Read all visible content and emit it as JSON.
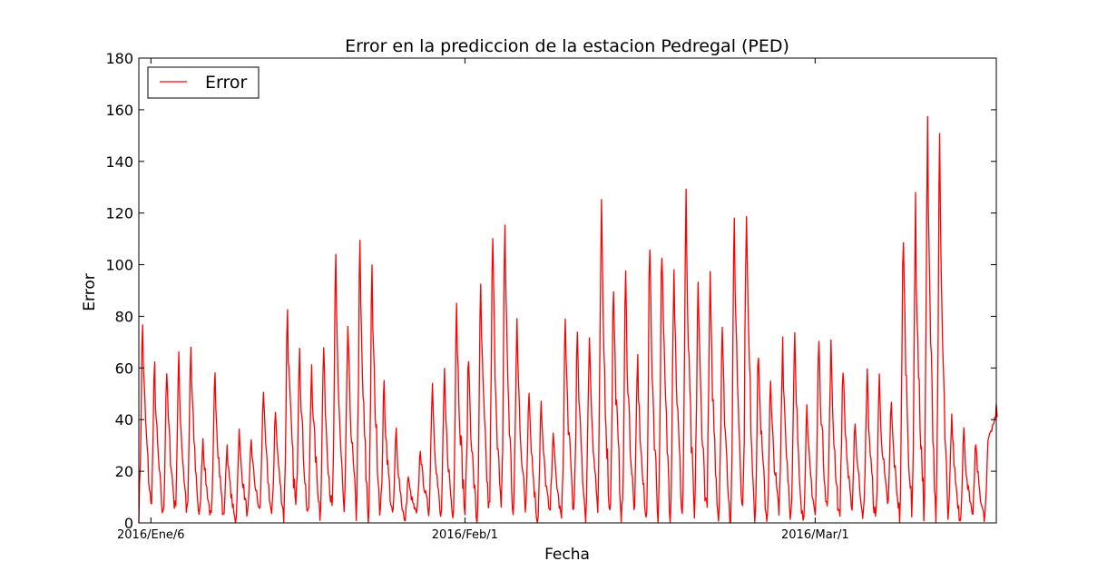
{
  "chart_data": {
    "type": "line",
    "title": "Error en la prediccion de la estacion Pedregal (PED)",
    "xlabel": "Fecha",
    "ylabel": "Error",
    "ylim": [
      0,
      180
    ],
    "yticks": [
      0,
      20,
      40,
      60,
      80,
      100,
      120,
      140,
      160,
      180
    ],
    "x_start": "2016-01-05",
    "x_end": "2016-03-16",
    "xticks": [
      {
        "date": "2016-01-06",
        "label": "2016/Ene/6"
      },
      {
        "date": "2016-02-01",
        "label": "2016/Feb/1"
      },
      {
        "date": "2016-03-01",
        "label": "2016/Mar/1"
      }
    ],
    "legend": {
      "position": "top-left"
    },
    "grid": false,
    "series": [
      {
        "name": "Error",
        "color": "#ff0000",
        "x": [
          "2016-01-05",
          "2016-01-06",
          "2016-01-07",
          "2016-01-08",
          "2016-01-09",
          "2016-01-10",
          "2016-01-11",
          "2016-01-12",
          "2016-01-13",
          "2016-01-14",
          "2016-01-15",
          "2016-01-16",
          "2016-01-17",
          "2016-01-18",
          "2016-01-19",
          "2016-01-20",
          "2016-01-21",
          "2016-01-22",
          "2016-01-23",
          "2016-01-24",
          "2016-01-25",
          "2016-01-26",
          "2016-01-27",
          "2016-01-28",
          "2016-01-29",
          "2016-01-30",
          "2016-01-31",
          "2016-02-01",
          "2016-02-02",
          "2016-02-03",
          "2016-02-04",
          "2016-02-05",
          "2016-02-06",
          "2016-02-07",
          "2016-02-08",
          "2016-02-09",
          "2016-02-10",
          "2016-02-11",
          "2016-02-12",
          "2016-02-13",
          "2016-02-14",
          "2016-02-15",
          "2016-02-16",
          "2016-02-17",
          "2016-02-18",
          "2016-02-19",
          "2016-02-20",
          "2016-02-21",
          "2016-02-22",
          "2016-02-23",
          "2016-02-24",
          "2016-02-25",
          "2016-02-26",
          "2016-02-27",
          "2016-02-28",
          "2016-02-29",
          "2016-03-01",
          "2016-03-02",
          "2016-03-03",
          "2016-03-04",
          "2016-03-05",
          "2016-03-06",
          "2016-03-07",
          "2016-03-08",
          "2016-03-09",
          "2016-03-10",
          "2016-03-11",
          "2016-03-12",
          "2016-03-13",
          "2016-03-14",
          "2016-03-15",
          "2016-03-16"
        ],
        "peaks": [
          85,
          67,
          66,
          70,
          76,
          37,
          67,
          34,
          39,
          36,
          58,
          50,
          93,
          80,
          69,
          76,
          112,
          85,
          118,
          107,
          60,
          40,
          20,
          32,
          62,
          63,
          97,
          73,
          101,
          124,
          131,
          87,
          60,
          52,
          40,
          88,
          81,
          82,
          135,
          103,
          106,
          71,
          121,
          122,
          114,
          139,
          105,
          104,
          86,
          131,
          139,
          75,
          60,
          80,
          80,
          48,
          80,
          76,
          69,
          45,
          66,
          62,
          52,
          128,
          136,
          170,
          163,
          47,
          40,
          35,
          30,
          46
        ],
        "troughs": [
          5,
          6,
          2,
          5,
          3,
          2,
          1,
          2,
          0,
          3,
          4,
          2,
          3,
          5,
          1,
          4,
          3,
          2,
          5,
          1,
          4,
          2,
          0,
          3,
          5,
          1,
          2,
          4,
          0,
          3,
          1,
          2,
          5,
          0,
          3,
          1,
          4,
          2,
          5,
          3,
          1,
          4,
          0,
          2,
          5,
          3,
          1,
          4,
          2,
          0,
          5,
          3,
          1,
          4,
          2,
          0,
          3,
          5,
          1,
          4,
          2,
          0,
          6,
          3,
          1,
          4,
          2,
          0,
          1,
          2,
          1,
          41
        ]
      }
    ]
  }
}
